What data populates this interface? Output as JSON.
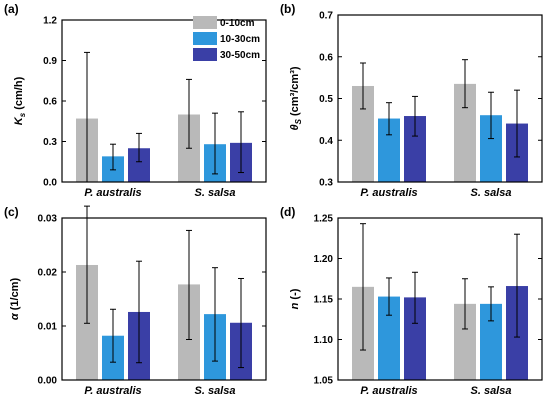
{
  "figure": {
    "legend": [
      {
        "label": "0-10cm",
        "color": "#b9b9b9"
      },
      {
        "label": "10-30cm",
        "color": "#2e97dc"
      },
      {
        "label": "30-50cm",
        "color": "#3a3fa6"
      }
    ]
  },
  "chart_data": [
    {
      "type": "bar",
      "panel_label": "(a)",
      "ylabel_symbol": "K",
      "ylabel_sub": "s",
      "ylabel_unit": " (cm/h)",
      "categories": [
        "P. australis",
        "S. salsa"
      ],
      "ylim": [
        0.0,
        1.2
      ],
      "yticks": [
        0.0,
        0.3,
        0.6,
        0.9,
        1.2
      ],
      "ytick_labels": [
        "0.0",
        "0.3",
        "0.6",
        "0.9",
        "1.2"
      ],
      "grid": false,
      "legend_position": "top-right",
      "series": [
        {
          "name": "0-10cm",
          "values": [
            0.47,
            0.5
          ],
          "err_low": [
            0.0,
            0.25
          ],
          "err_high": [
            0.96,
            0.76
          ]
        },
        {
          "name": "10-30cm",
          "values": [
            0.19,
            0.28
          ],
          "err_low": [
            0.09,
            0.06
          ],
          "err_high": [
            0.28,
            0.51
          ]
        },
        {
          "name": "30-50cm",
          "values": [
            0.25,
            0.29
          ],
          "err_low": [
            0.15,
            0.07
          ],
          "err_high": [
            0.36,
            0.52
          ]
        }
      ]
    },
    {
      "type": "bar",
      "panel_label": "(b)",
      "ylabel_symbol": "θ",
      "ylabel_sub": "S",
      "ylabel_unit": " (cm³/cm³)",
      "categories": [
        "P. australis",
        "S. salsa"
      ],
      "ylim": [
        0.3,
        0.7
      ],
      "yticks": [
        0.3,
        0.4,
        0.5,
        0.6,
        0.7
      ],
      "ytick_labels": [
        "0.3",
        "0.4",
        "0.5",
        "0.6",
        "0.7"
      ],
      "grid": false,
      "series": [
        {
          "name": "0-10cm",
          "values": [
            0.53,
            0.535
          ],
          "err_low": [
            0.475,
            0.478
          ],
          "err_high": [
            0.585,
            0.593
          ]
        },
        {
          "name": "10-30cm",
          "values": [
            0.452,
            0.46
          ],
          "err_low": [
            0.413,
            0.404
          ],
          "err_high": [
            0.49,
            0.515
          ]
        },
        {
          "name": "30-50cm",
          "values": [
            0.458,
            0.44
          ],
          "err_low": [
            0.41,
            0.36
          ],
          "err_high": [
            0.505,
            0.52
          ]
        }
      ]
    },
    {
      "type": "bar",
      "panel_label": "(c)",
      "ylabel_symbol": "α",
      "ylabel_sub": "",
      "ylabel_unit": " (1/cm)",
      "categories": [
        "P. australis",
        "S. salsa"
      ],
      "ylim": [
        0.0,
        0.03
      ],
      "yticks": [
        0.0,
        0.01,
        0.02,
        0.03
      ],
      "ytick_labels": [
        "0.00",
        "0.01",
        "0.02",
        "0.03"
      ],
      "grid": false,
      "series": [
        {
          "name": "0-10cm",
          "values": [
            0.0213,
            0.0177
          ],
          "err_low": [
            0.0105,
            0.0075
          ],
          "err_high": [
            0.0322,
            0.0277
          ]
        },
        {
          "name": "10-30cm",
          "values": [
            0.0082,
            0.0122
          ],
          "err_low": [
            0.0033,
            0.0035
          ],
          "err_high": [
            0.0131,
            0.0208
          ]
        },
        {
          "name": "30-50cm",
          "values": [
            0.0126,
            0.0106
          ],
          "err_low": [
            0.0032,
            0.0023
          ],
          "err_high": [
            0.022,
            0.0188
          ]
        }
      ]
    },
    {
      "type": "bar",
      "panel_label": "(d)",
      "ylabel_symbol": "n",
      "ylabel_sub": "",
      "ylabel_unit": " (-)",
      "categories": [
        "P. australis",
        "S. salsa"
      ],
      "ylim": [
        1.05,
        1.25
      ],
      "yticks": [
        1.05,
        1.1,
        1.15,
        1.2,
        1.25
      ],
      "ytick_labels": [
        "1.05",
        "1.10",
        "1.15",
        "1.20",
        "1.25"
      ],
      "grid": false,
      "series": [
        {
          "name": "0-10cm",
          "values": [
            1.165,
            1.144
          ],
          "err_low": [
            1.087,
            1.113
          ],
          "err_high": [
            1.243,
            1.175
          ]
        },
        {
          "name": "10-30cm",
          "values": [
            1.153,
            1.144
          ],
          "err_low": [
            1.13,
            1.123
          ],
          "err_high": [
            1.176,
            1.165
          ]
        },
        {
          "name": "30-50cm",
          "values": [
            1.152,
            1.166
          ],
          "err_low": [
            1.12,
            1.103
          ],
          "err_high": [
            1.183,
            1.23
          ]
        }
      ]
    }
  ]
}
